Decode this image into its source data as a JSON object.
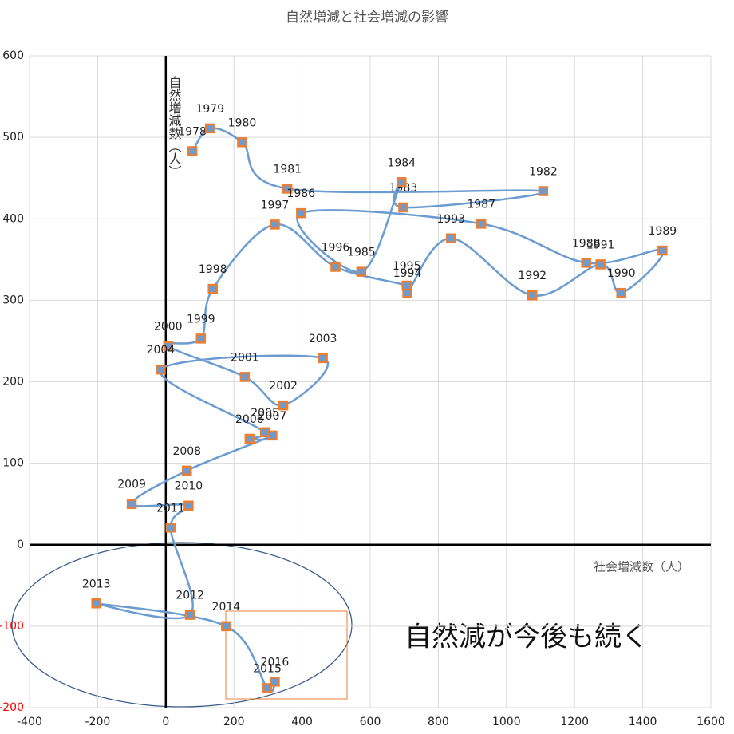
{
  "chart_data": {
    "type": "scatter",
    "title": "自然増減と社会増減の影響",
    "xlabel": "社会増減数（人）",
    "ylabel": "自然増減数（人）",
    "annotation": "自然減が今後も続く",
    "xlim": [
      -400,
      1600
    ],
    "xticks": [
      -400,
      -200,
      0,
      200,
      400,
      600,
      800,
      1000,
      1200,
      1400,
      1600
    ],
    "ylim": [
      -200,
      600
    ],
    "yticks": [
      -200,
      -100,
      0,
      100,
      200,
      300,
      400,
      500,
      600
    ],
    "negative_tick_color": "#ff0000",
    "grid": true,
    "series": [
      {
        "color": "#6a9bd1",
        "marker_color": "#ed7d31",
        "point_labels": [
          "1978",
          "1979",
          "1980",
          "1981",
          "1982",
          "1983",
          "1984",
          "1985",
          "1986",
          "1987",
          "1988",
          "1989",
          "1990",
          "1991",
          "1992",
          "1993",
          "1994",
          "1995",
          "1996",
          "1997",
          "1998",
          "1999",
          "2000",
          "2001",
          "2002",
          "2003",
          "2004",
          "2005",
          "2006",
          "2007",
          "2008",
          "2009",
          "2010",
          "2011",
          "2012",
          "2013",
          "2014",
          "2015",
          "2016"
        ],
        "x": [
          78,
          130,
          224,
          357,
          1108,
          697,
          692,
          574,
          397,
          926,
          1234,
          1458,
          1337,
          1276,
          1076,
          837,
          709,
          707,
          498,
          320,
          138,
          103,
          7,
          232,
          345,
          461,
          -15,
          291,
          246,
          313,
          62,
          -100,
          67,
          14,
          71,
          -204,
          177,
          298,
          320
        ],
        "values": [
          483,
          511,
          494,
          437,
          434,
          414,
          445,
          335,
          407,
          394,
          346,
          361,
          309,
          344,
          306,
          376,
          309,
          318,
          341,
          393,
          314,
          253,
          244,
          206,
          171,
          229,
          215,
          138,
          130,
          134,
          91,
          50,
          48,
          21,
          -86,
          -72,
          -100,
          -176,
          -168
        ]
      }
    ]
  }
}
